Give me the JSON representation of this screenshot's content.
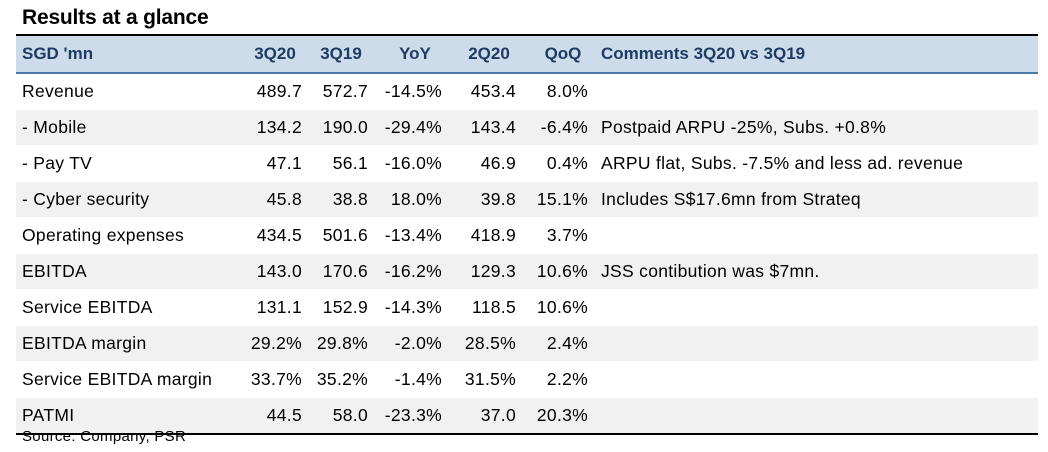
{
  "title": "Results at a glance",
  "header": {
    "label": "SGD 'mn",
    "c3q20": "3Q20",
    "c3q19": "3Q19",
    "yoy": "YoY",
    "c2q20": "2Q20",
    "qoq": "QoQ",
    "comments": "Comments 3Q20 vs 3Q19"
  },
  "rows": [
    {
      "label": "Revenue",
      "c3q20": "489.7",
      "c3q19": "572.7",
      "yoy": "-14.5%",
      "c2q20": "453.4",
      "qoq": "8.0%",
      "comments": ""
    },
    {
      "label": " - Mobile",
      "c3q20": "134.2",
      "c3q19": "190.0",
      "yoy": "-29.4%",
      "c2q20": "143.4",
      "qoq": "-6.4%",
      "comments": "Postpaid ARPU -25%, Subs. +0.8%"
    },
    {
      "label": " - Pay TV",
      "c3q20": "47.1",
      "c3q19": "56.1",
      "yoy": "-16.0%",
      "c2q20": "46.9",
      "qoq": "0.4%",
      "comments": "ARPU flat, Subs. -7.5% and less ad. revenue"
    },
    {
      "label": " - Cyber security",
      "c3q20": "45.8",
      "c3q19": "38.8",
      "yoy": "18.0%",
      "c2q20": "39.8",
      "qoq": "15.1%",
      "comments": "Includes S$17.6mn from Strateq"
    },
    {
      "label": "Operating expenses",
      "c3q20": "434.5",
      "c3q19": "501.6",
      "yoy": "-13.4%",
      "c2q20": "418.9",
      "qoq": "3.7%",
      "comments": ""
    },
    {
      "label": "EBITDA",
      "c3q20": "143.0",
      "c3q19": "170.6",
      "yoy": "-16.2%",
      "c2q20": "129.3",
      "qoq": "10.6%",
      "comments": "JSS contibution was $7mn."
    },
    {
      "label": "Service EBITDA",
      "c3q20": "131.1",
      "c3q19": "152.9",
      "yoy": "-14.3%",
      "c2q20": "118.5",
      "qoq": "10.6%",
      "comments": ""
    },
    {
      "label": "EBITDA margin",
      "c3q20": "29.2%",
      "c3q19": "29.8%",
      "yoy": "-2.0%",
      "c2q20": "28.5%",
      "qoq": "2.4%",
      "comments": ""
    },
    {
      "label": "Service EBITDA margin",
      "c3q20": "33.7%",
      "c3q19": "35.2%",
      "yoy": "-1.4%",
      "c2q20": "31.5%",
      "qoq": "2.2%",
      "comments": ""
    },
    {
      "label": "PATMI",
      "c3q20": "44.5",
      "c3q19": "58.0",
      "yoy": "-23.3%",
      "c2q20": "37.0",
      "qoq": "20.3%",
      "comments": ""
    }
  ],
  "source": "Source: Company, PSR",
  "colors": {
    "header_bg": "#cddcea",
    "header_text": "#1f3b63",
    "row_shade": "#f1f1f1"
  }
}
